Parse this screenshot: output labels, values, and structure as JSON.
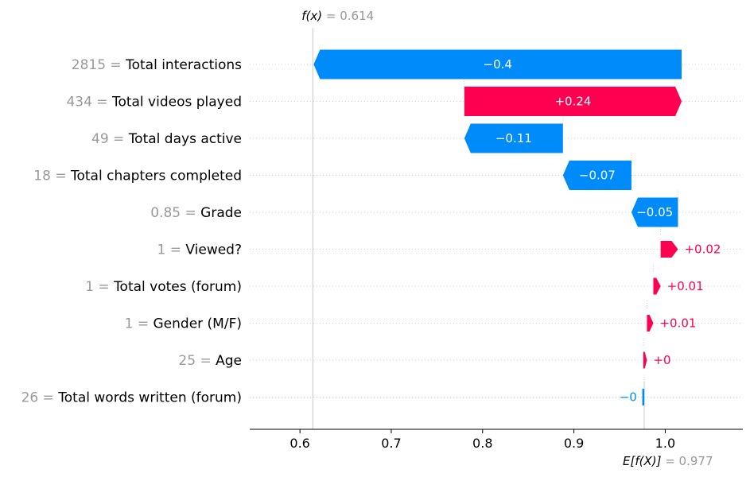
{
  "chart_data": {
    "type": "waterfall",
    "title": "",
    "xlabel": "",
    "ylabel": "",
    "xlim": [
      0.545,
      1.085
    ],
    "x_ticks": [
      {
        "value": 0.6,
        "label": "0.6"
      },
      {
        "value": 0.7,
        "label": "0.7"
      },
      {
        "value": 0.8,
        "label": "0.8"
      },
      {
        "value": 0.9,
        "label": "0.9"
      },
      {
        "value": 1.0,
        "label": "1.0"
      }
    ],
    "fx": {
      "label": "f(x)",
      "value_text": "= 0.614",
      "value": 0.614
    },
    "base": {
      "label": "E[f(X)]",
      "value_text": "= 0.977",
      "value": 0.977
    },
    "colors": {
      "positive": "#ff0051",
      "negative": "#008bfb",
      "value_label": "#999999",
      "grid": "#cccccc"
    },
    "features": [
      {
        "value": "2815",
        "name": "Total interactions",
        "contribution": -0.403,
        "label": "−0.4"
      },
      {
        "value": "434",
        "name": "Total videos played",
        "contribution": 0.238,
        "label": "+0.24"
      },
      {
        "value": "49",
        "name": "Total days active",
        "contribution": -0.108,
        "label": "−0.11"
      },
      {
        "value": "18",
        "name": "Total chapters completed",
        "contribution": -0.075,
        "label": "−0.07"
      },
      {
        "value": "0.85",
        "name": "Grade",
        "contribution": -0.051,
        "label": "−0.05"
      },
      {
        "value": "1",
        "name": "Viewed?",
        "contribution": 0.019,
        "label": "+0.02"
      },
      {
        "value": "1",
        "name": "Total votes (forum)",
        "contribution": 0.008,
        "label": "+0.01"
      },
      {
        "value": "1",
        "name": "Gender (M/F)",
        "contribution": 0.007,
        "label": "+0.01"
      },
      {
        "value": "25",
        "name": "Age",
        "contribution": 0.004,
        "label": "+0"
      },
      {
        "value": "26",
        "name": "Total words written (forum)",
        "contribution": -0.001,
        "label": "−0"
      }
    ]
  }
}
